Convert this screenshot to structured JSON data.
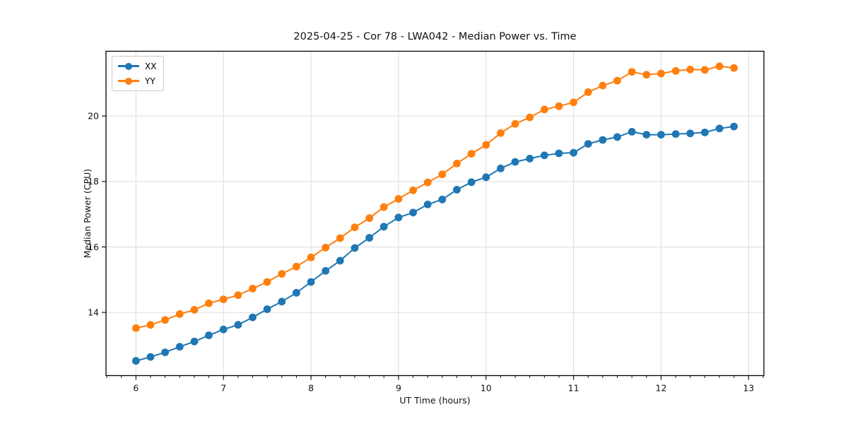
{
  "figure": {
    "background": "#ffffff"
  },
  "chart_data": {
    "type": "line",
    "title": "2025-04-25 - Cor 78 - LWA042 - Median Power vs. Time",
    "xlabel": "UT Time (hours)",
    "ylabel": "Median Power (CPU)",
    "xlim": [
      5.658,
      13.175
    ],
    "ylim": [
      12.07,
      21.98
    ],
    "xticks": [
      6,
      7,
      8,
      9,
      10,
      11,
      12,
      13
    ],
    "yticks": [
      14,
      16,
      18,
      20
    ],
    "x_minor_tick_step": 0.1667,
    "grid": true,
    "grid_color": "#dcdcdc",
    "spine_color": "#000000",
    "legend_position": "upper-left",
    "marker": "circle",
    "x": [
      6.0,
      6.167,
      6.333,
      6.5,
      6.667,
      6.833,
      7.0,
      7.167,
      7.333,
      7.5,
      7.667,
      7.833,
      8.0,
      8.167,
      8.333,
      8.5,
      8.667,
      8.833,
      9.0,
      9.167,
      9.333,
      9.5,
      9.667,
      9.833,
      10.0,
      10.167,
      10.333,
      10.5,
      10.667,
      10.833,
      11.0,
      11.167,
      11.333,
      11.5,
      11.667,
      11.833,
      12.0,
      12.167,
      12.333,
      12.5,
      12.667,
      12.833
    ],
    "series": [
      {
        "name": "XX",
        "color": "#1f77b4",
        "values": [
          12.52,
          12.64,
          12.78,
          12.95,
          13.11,
          13.3,
          13.48,
          13.62,
          13.85,
          14.1,
          14.33,
          14.6,
          14.93,
          15.27,
          15.58,
          15.97,
          16.28,
          16.62,
          16.9,
          17.05,
          17.3,
          17.45,
          17.75,
          17.98,
          18.13,
          18.4,
          18.6,
          18.7,
          18.8,
          18.86,
          18.88,
          19.15,
          19.27,
          19.36,
          19.52,
          19.43,
          19.43,
          19.45,
          19.47,
          19.5,
          19.62,
          19.68
        ]
      },
      {
        "name": "YY",
        "color": "#ff7f0e",
        "values": [
          13.52,
          13.62,
          13.77,
          13.95,
          14.08,
          14.28,
          14.4,
          14.53,
          14.73,
          14.93,
          15.18,
          15.4,
          15.68,
          15.98,
          16.27,
          16.6,
          16.88,
          17.22,
          17.47,
          17.73,
          17.97,
          18.22,
          18.55,
          18.85,
          19.12,
          19.48,
          19.76,
          19.96,
          20.2,
          20.3,
          20.42,
          20.73,
          20.93,
          21.08,
          21.35,
          21.26,
          21.3,
          21.38,
          21.42,
          21.41,
          21.52,
          21.47
        ]
      }
    ]
  }
}
